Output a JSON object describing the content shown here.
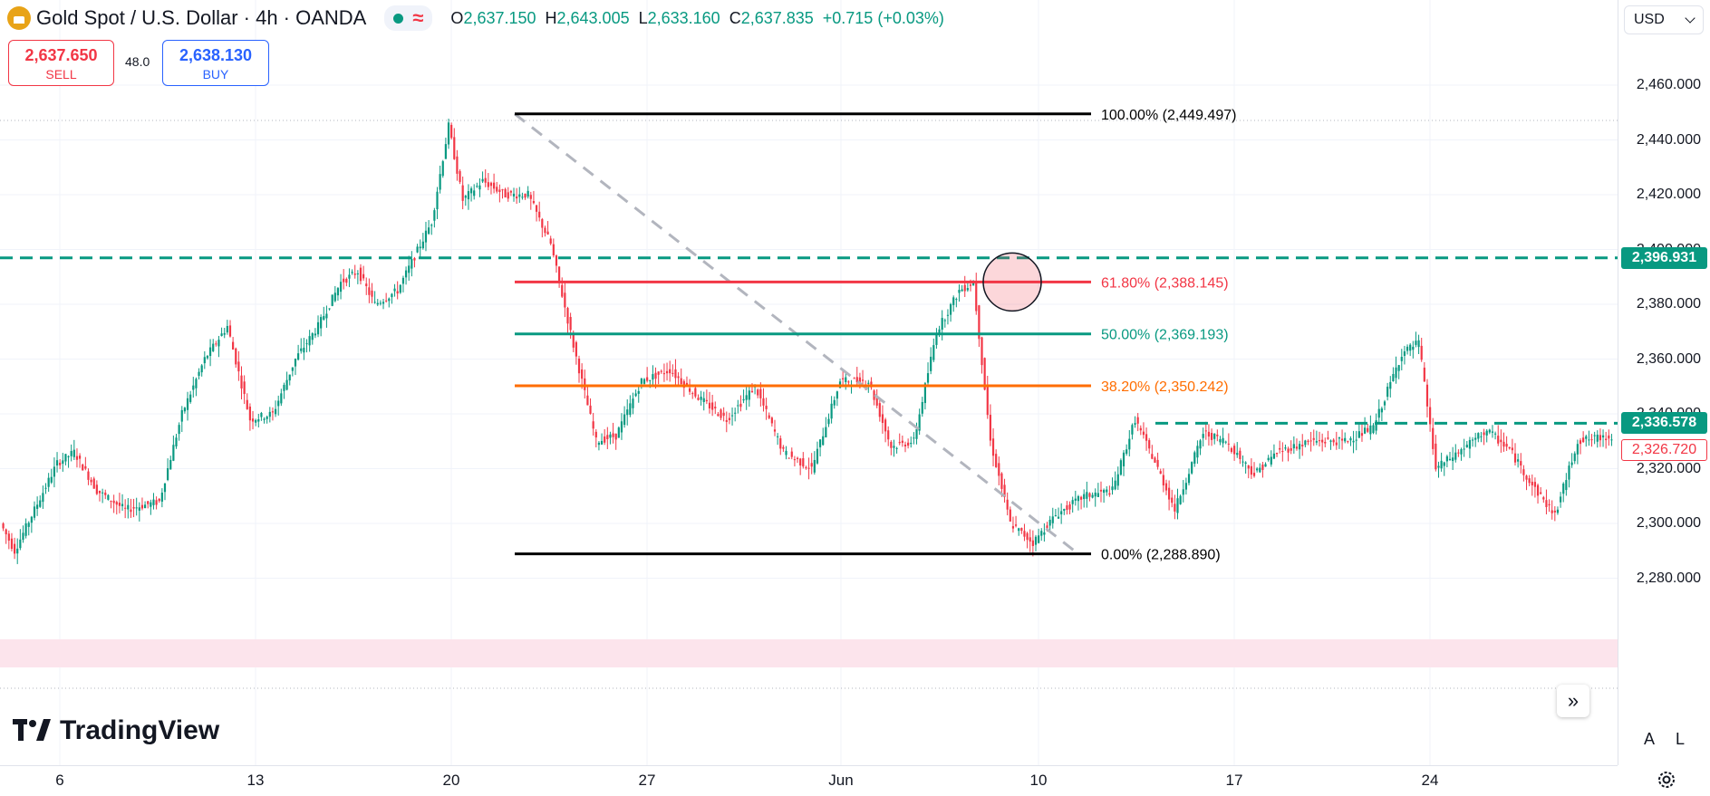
{
  "legend": {
    "symbol": "Gold Spot / U.S. Dollar · 4h · OANDA",
    "icon": "gold-bars-icon",
    "status_icons": [
      "market-open-dot-icon",
      "delayed-data-wave-icon"
    ],
    "ohlc": {
      "o_label": "O",
      "o": "2,637.150",
      "h_label": "H",
      "h": "2,643.005",
      "l_label": "L",
      "l": "2,633.160",
      "c_label": "C",
      "c": "2,637.835",
      "change": "+0.715 (+0.03%)"
    }
  },
  "trade": {
    "sell_price": "2,637.650",
    "sell_label": "SELL",
    "spread": "48.0",
    "buy_price": "2,638.130",
    "buy_label": "BUY"
  },
  "currency": "USD",
  "price_axis": {
    "ticks": [
      "2,460.000",
      "2,440.000",
      "2,420.000",
      "2,400.000",
      "2,380.000",
      "2,360.000",
      "2,340.000",
      "2,320.000",
      "2,300.000",
      "2,280.000"
    ],
    "tick_values": [
      2460,
      2440,
      2420,
      2400,
      2380,
      2360,
      2340,
      2320,
      2300,
      2280
    ],
    "tags": [
      {
        "text": "2,396.931",
        "value": 2396.931,
        "style": "green"
      },
      {
        "text": "2,336.578",
        "value": 2336.578,
        "style": "green"
      },
      {
        "text": "2,326.720",
        "value": 2326.72,
        "style": "red"
      }
    ]
  },
  "time_axis": {
    "labels": [
      "6",
      "13",
      "20",
      "27",
      "Jun",
      "10",
      "17",
      "24"
    ]
  },
  "fibonacci": {
    "levels": [
      {
        "label": "100.00% (2,449.497)",
        "value": 2449.497,
        "color": "#000000"
      },
      {
        "label": "61.80% (2,388.145)",
        "value": 2388.145,
        "color": "#f23645"
      },
      {
        "label": "50.00% (2,369.193)",
        "value": 2369.193,
        "color": "#089981"
      },
      {
        "label": "38.20% (2,350.242)",
        "value": 2350.242,
        "color": "#ff6d00"
      },
      {
        "label": "0.00% (2,288.890)",
        "value": 2288.89,
        "color": "#000000"
      }
    ]
  },
  "colors": {
    "up": "#089981",
    "down": "#f23645",
    "zone": "#fce4ec"
  },
  "branding": "TradingView",
  "buttons": {
    "scroll": "»",
    "auto": "A",
    "log": "L",
    "settings": "gear-icon"
  }
}
